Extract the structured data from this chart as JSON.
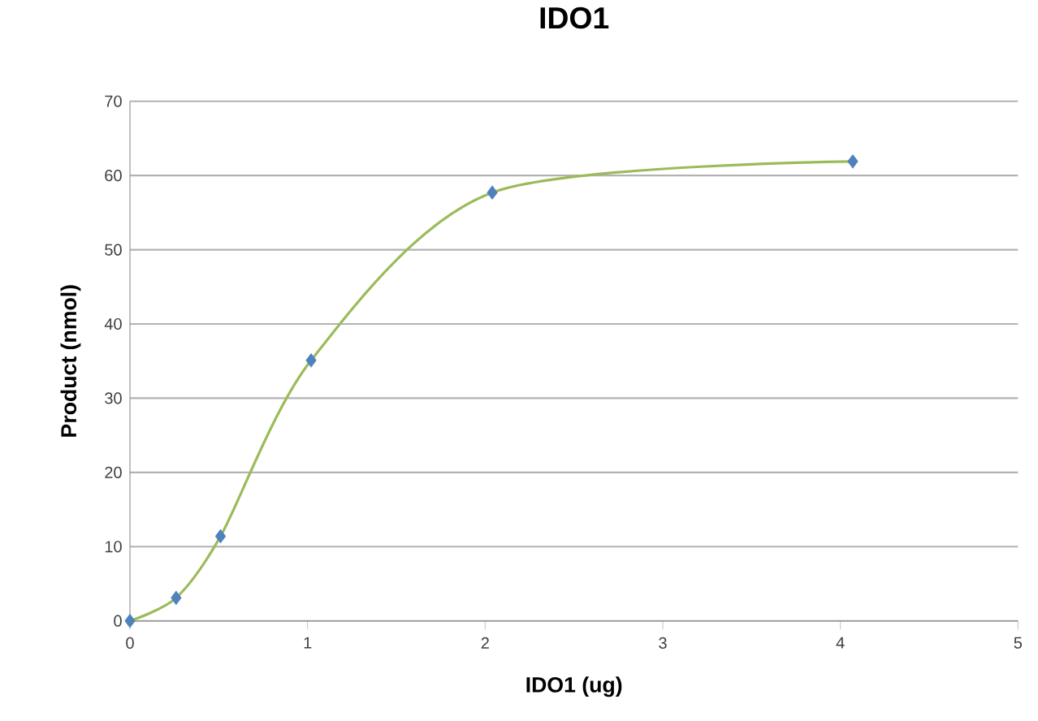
{
  "chart_data": {
    "type": "line",
    "title": "IDO1",
    "xlabel": "IDO1 (ug)",
    "ylabel": "Product (nmol)",
    "x": [
      0,
      0.26,
      0.51,
      1.02,
      2.04,
      4.07
    ],
    "series": [
      {
        "color": "#9bbb59",
        "values": [
          0,
          3.1,
          11.4,
          35.1,
          57.7,
          61.9
        ]
      }
    ],
    "xlim": [
      0,
      5
    ],
    "xticks": [
      0,
      1,
      2,
      3,
      4,
      5
    ],
    "ylim": [
      0,
      70
    ],
    "yticks": [
      0,
      10,
      20,
      30,
      40,
      50,
      60,
      70
    ],
    "grid": "y",
    "marker": "diamond",
    "line_style": "solid"
  }
}
